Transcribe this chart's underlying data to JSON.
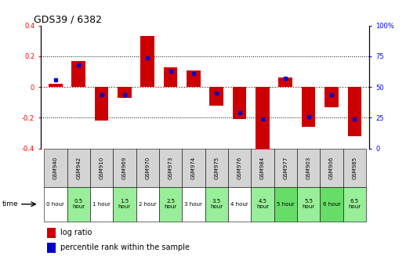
{
  "title": "GDS39 / 6382",
  "samples": [
    "GSM940",
    "GSM942",
    "GSM910",
    "GSM969",
    "GSM970",
    "GSM973",
    "GSM974",
    "GSM975",
    "GSM976",
    "GSM984",
    "GSM977",
    "GSM903",
    "GSM906",
    "GSM985"
  ],
  "time_labels": [
    "0 hour",
    "0.5\nhour",
    "1 hour",
    "1.5\nhour",
    "2 hour",
    "2.5\nhour",
    "3 hour",
    "3.5\nhour",
    "4 hour",
    "4.5\nhour",
    "5 hour",
    "5.5\nhour",
    "6 hour",
    "6.5\nhour"
  ],
  "time_colors": [
    "#ffffff",
    "#99ee99",
    "#ffffff",
    "#99ee99",
    "#ffffff",
    "#99ee99",
    "#ffffff",
    "#99ee99",
    "#ffffff",
    "#99ee99",
    "#66dd66",
    "#99ee99",
    "#66dd66",
    "#99ee99"
  ],
  "log_ratio": [
    0.02,
    0.17,
    -0.22,
    -0.07,
    0.33,
    0.13,
    0.11,
    -0.12,
    -0.21,
    -0.42,
    0.06,
    -0.26,
    -0.13,
    -0.32
  ],
  "percentile": [
    56,
    68,
    44,
    44,
    74,
    63,
    61,
    45,
    29,
    24,
    57,
    26,
    44,
    24
  ],
  "ylim_left": [
    -0.4,
    0.4
  ],
  "ylim_right": [
    0,
    100
  ],
  "bar_color": "#cc0000",
  "dot_color": "#0000cc",
  "hline_color": "#cc0000",
  "grid_color": "#000000",
  "bar_width": 0.6,
  "title_fontsize": 9,
  "tick_fontsize": 6,
  "gsm_fontsize": 5,
  "time_fontsize": 5,
  "legend_fontsize": 7
}
